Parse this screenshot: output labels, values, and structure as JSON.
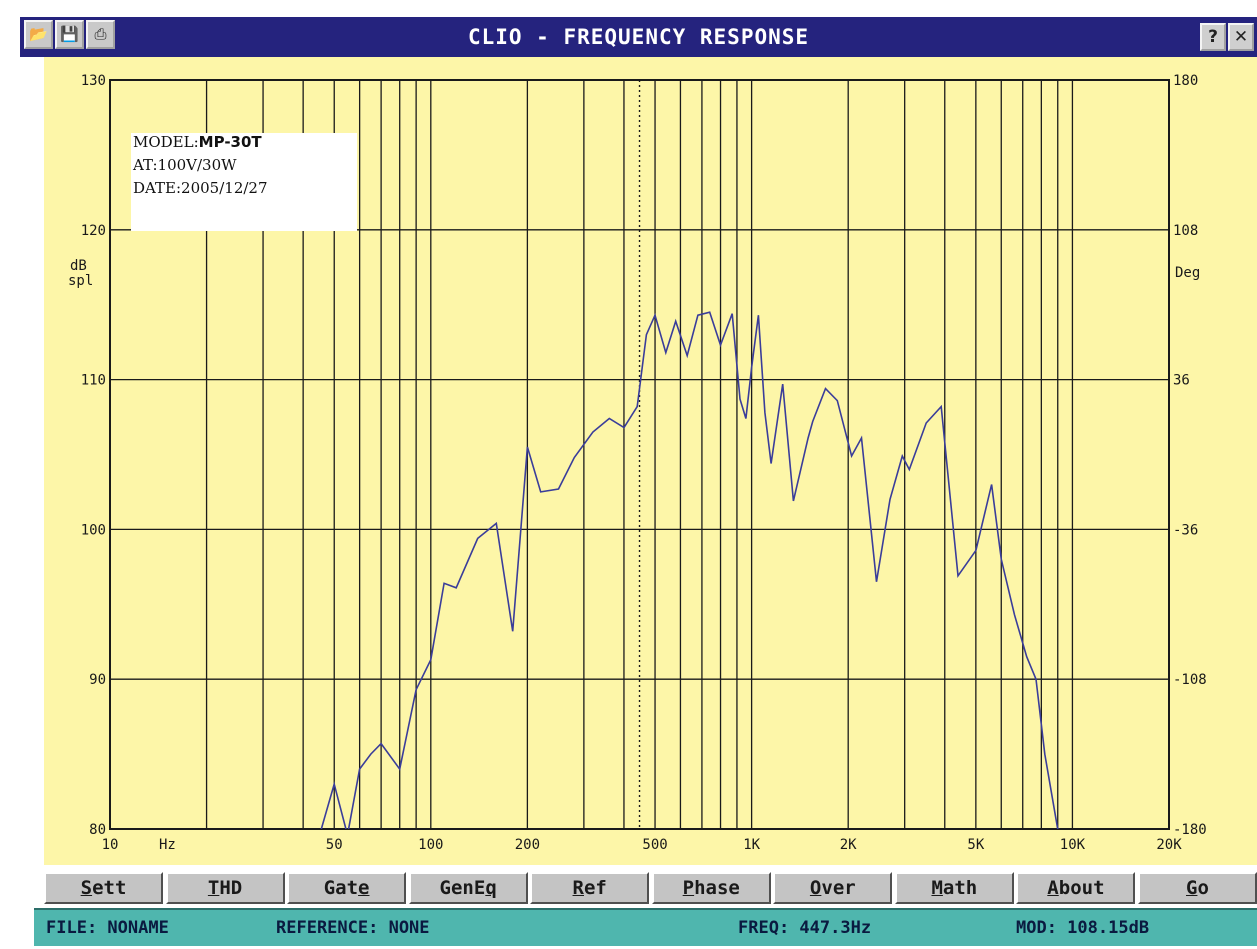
{
  "window": {
    "title": "CLIO - FREQUENCY RESPONSE",
    "help_label": "?",
    "close_label": "✕",
    "icons": [
      "folder-icon",
      "save-icon",
      "printer-icon"
    ]
  },
  "info_box": {
    "model_label": "MODEL:",
    "model_value": "MP-30T",
    "at_line": "AT:100V/30W",
    "date_line": "DATE:2005/12/27"
  },
  "chart_data": {
    "type": "line",
    "xscale": "log",
    "xlim": [
      10,
      20000
    ],
    "ylim": [
      80,
      130
    ],
    "y2lim": [
      -180,
      180
    ],
    "grid": true,
    "background_color": "#fdf6a8",
    "line_color": "#3a3d9a",
    "y_ticks": [
      80,
      90,
      100,
      110,
      120,
      130
    ],
    "y2_ticks": [
      "-180",
      "-108",
      "-36",
      "36",
      "108",
      "180"
    ],
    "x_tick_labels": [
      {
        "value": 10,
        "label": "10"
      },
      {
        "value": 50,
        "label": "50"
      },
      {
        "value": 100,
        "label": "100"
      },
      {
        "value": 200,
        "label": "200"
      },
      {
        "value": 500,
        "label": "500"
      },
      {
        "value": 1000,
        "label": "1K"
      },
      {
        "value": 2000,
        "label": "2K"
      },
      {
        "value": 5000,
        "label": "5K"
      },
      {
        "value": 10000,
        "label": "10K"
      },
      {
        "value": 20000,
        "label": "20K"
      }
    ],
    "x_unit_label": "Hz",
    "ylabel": [
      "dB",
      "spl"
    ],
    "y2label": "Deg",
    "cursor_x": 447.3,
    "series": [
      {
        "x": [
          45,
          50,
          55,
          60,
          65,
          70,
          80,
          90,
          100,
          110,
          120,
          140,
          160,
          180,
          200,
          220,
          250,
          280,
          320,
          360,
          400,
          440,
          470,
          500,
          540,
          580,
          630,
          680,
          740,
          800,
          870,
          920,
          960,
          1000,
          1050,
          1100,
          1150,
          1250,
          1350,
          1500,
          1550,
          1700,
          1850,
          2050,
          2200,
          2450,
          2700,
          2950,
          3100,
          3500,
          3900,
          4400,
          5000,
          5600,
          6000,
          6600,
          7200,
          7700,
          8200,
          9000,
          10000,
          10800,
          12000,
          14000,
          15200,
          15600,
          16700
        ],
        "y": [
          79,
          83,
          79.5,
          84,
          85,
          85.7,
          84,
          89.3,
          91.3,
          96.4,
          96.1,
          99.4,
          100.4,
          93.2,
          105.5,
          102.5,
          102.7,
          104.8,
          106.5,
          107.4,
          106.8,
          108.2,
          113,
          114.3,
          111.8,
          113.9,
          111.6,
          114.3,
          114.5,
          112.3,
          114.4,
          108.7,
          107.4,
          110.8,
          114.3,
          107.8,
          104.4,
          109.7,
          101.9,
          106.1,
          107.2,
          109.4,
          108.6,
          104.9,
          106.1,
          96.5,
          102,
          104.9,
          104,
          107.1,
          108.2,
          96.9,
          98.6,
          103,
          98,
          94.3,
          91.5,
          90,
          85,
          80,
          78,
          78,
          78,
          78,
          78,
          78,
          78
        ]
      }
    ]
  },
  "toolbar": {
    "buttons": [
      {
        "name": "sett",
        "pre": "",
        "u": "S",
        "post": "ett"
      },
      {
        "name": "thd",
        "pre": "",
        "u": "T",
        "post": "HD"
      },
      {
        "name": "gate",
        "pre": "Gat",
        "u": "e",
        "post": ""
      },
      {
        "name": "geneq",
        "pre": "GenE",
        "u": "q",
        "post": ""
      },
      {
        "name": "ref",
        "pre": "",
        "u": "R",
        "post": "ef"
      },
      {
        "name": "phase",
        "pre": "",
        "u": "P",
        "post": "hase"
      },
      {
        "name": "over",
        "pre": "",
        "u": "O",
        "post": "ver"
      },
      {
        "name": "math",
        "pre": "",
        "u": "M",
        "post": "ath"
      },
      {
        "name": "about",
        "pre": "",
        "u": "A",
        "post": "bout"
      },
      {
        "name": "go",
        "pre": "",
        "u": "G",
        "post": "o"
      }
    ]
  },
  "status": {
    "file": "FILE: NONAME",
    "reference": "REFERENCE: NONE",
    "freq": "FREQ: 447.3Hz",
    "mod": "MOD: 108.15dB"
  }
}
